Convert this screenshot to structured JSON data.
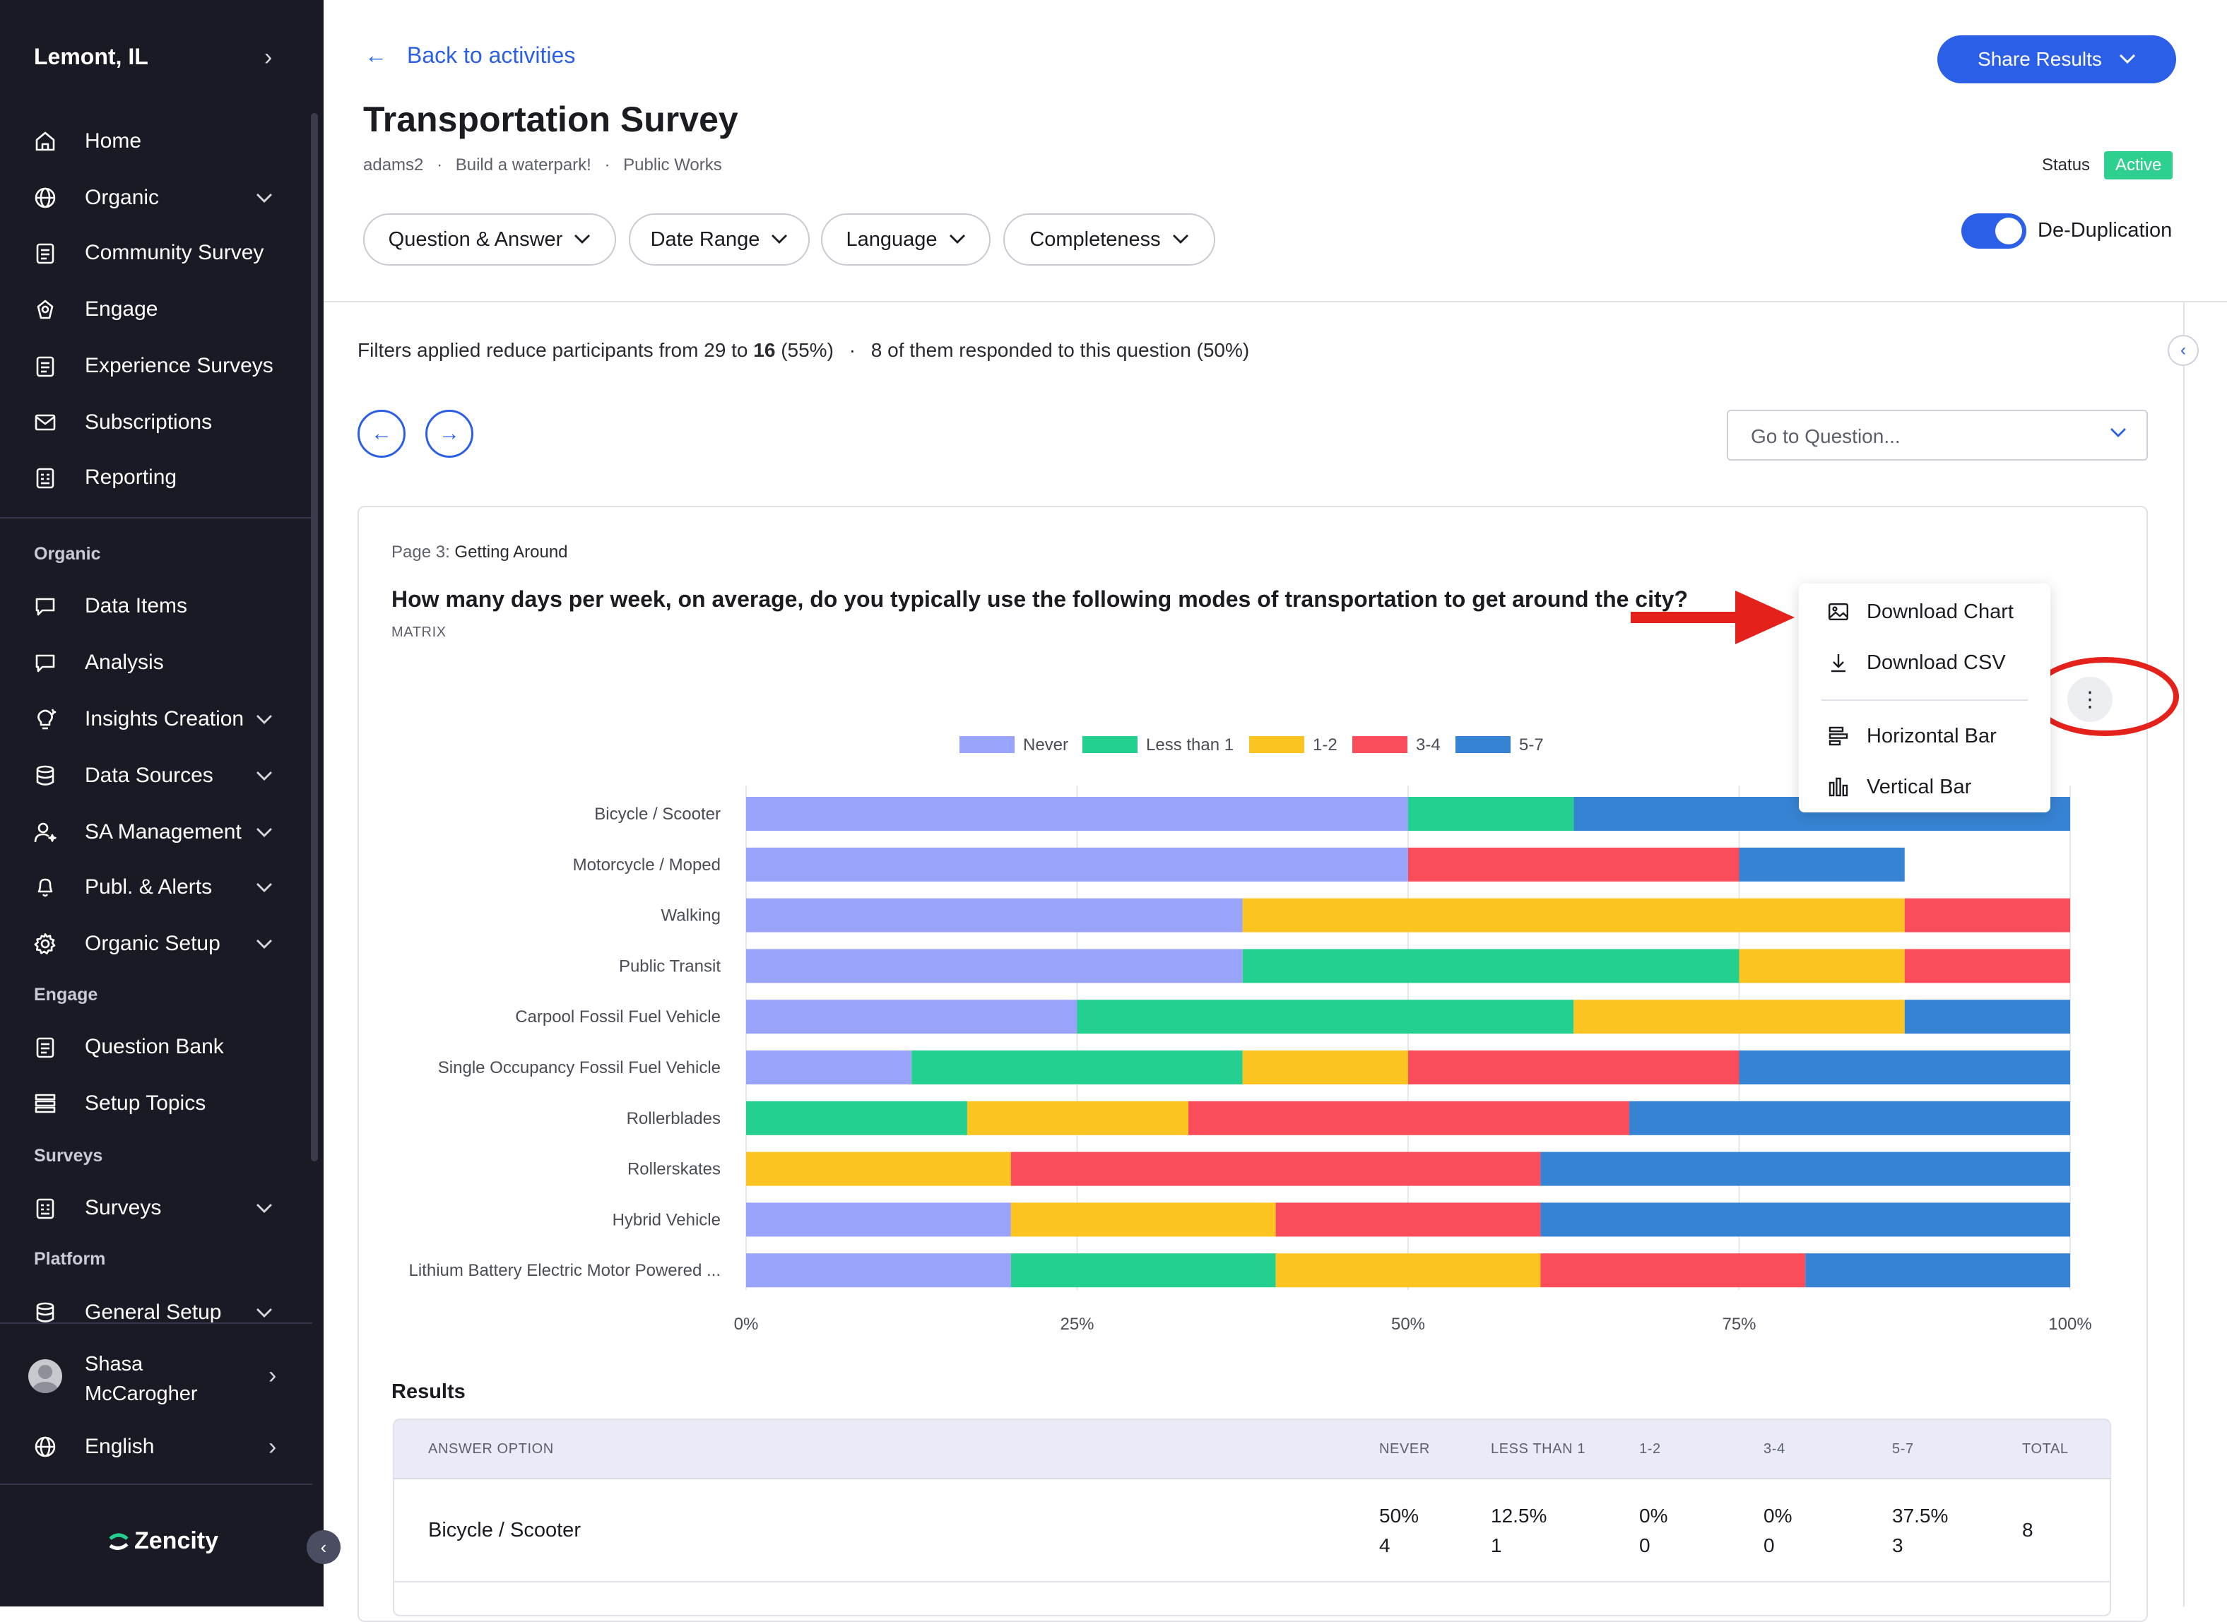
{
  "sidebar": {
    "city": "Lemont, IL",
    "items_top": [
      {
        "label": "Home",
        "icon": "home-icon",
        "chevron": false
      },
      {
        "label": "Organic",
        "icon": "globe-icon",
        "chevron": true
      },
      {
        "label": "Community Survey",
        "icon": "clipboard-icon",
        "chevron": false
      },
      {
        "label": "Engage",
        "icon": "engage-icon",
        "chevron": false
      },
      {
        "label": "Experience Surveys",
        "icon": "clipboard-icon",
        "chevron": false
      },
      {
        "label": "Subscriptions",
        "icon": "mail-icon",
        "chevron": false
      },
      {
        "label": "Reporting",
        "icon": "report-icon",
        "chevron": false
      }
    ],
    "section_organic": "Organic",
    "items_organic": [
      {
        "label": "Data Items",
        "icon": "chat-icon",
        "chevron": false
      },
      {
        "label": "Analysis",
        "icon": "chat-icon",
        "chevron": false
      },
      {
        "label": "Insights Creation",
        "icon": "bulb-icon",
        "chevron": true
      },
      {
        "label": "Data Sources",
        "icon": "database-icon",
        "chevron": true
      },
      {
        "label": "SA Management",
        "icon": "user-star-icon",
        "chevron": true
      },
      {
        "label": "Publ. & Alerts",
        "icon": "bell-icon",
        "chevron": true
      },
      {
        "label": "Organic Setup",
        "icon": "gear-icon",
        "chevron": true
      }
    ],
    "section_engage": "Engage",
    "items_engage": [
      {
        "label": "Question Bank",
        "icon": "clipboard-icon",
        "chevron": false
      },
      {
        "label": "Setup Topics",
        "icon": "list-icon",
        "chevron": false
      }
    ],
    "section_surveys": "Surveys",
    "items_surveys": [
      {
        "label": "Surveys",
        "icon": "report-icon",
        "chevron": true
      }
    ],
    "section_platform": "Platform",
    "items_platform": [
      {
        "label": "General Setup",
        "icon": "database-icon",
        "chevron": true
      }
    ],
    "user_name_line1": "Shasa",
    "user_name_line2": "McCarogher",
    "language": "English",
    "brand": "Zencity"
  },
  "header": {
    "back_label": "Back to activities",
    "title": "Transportation Survey",
    "crumbs": [
      "adams2",
      "Build a waterpark!",
      "Public Works"
    ],
    "share_label": "Share Results",
    "status_label": "Status",
    "status_value": "Active",
    "filters": [
      "Question & Answer",
      "Date Range",
      "Language",
      "Completeness"
    ],
    "dedup_label": "De-Duplication",
    "dedup_on": true
  },
  "filter_note": {
    "prefix": "Filters applied reduce participants from 29 to ",
    "bold": "16",
    "suffix": " (55%)",
    "second": "8 of them responded to this question (50%)"
  },
  "goto_placeholder": "Go to Question...",
  "card": {
    "page_prefix": "Page 3:",
    "page_name": "Getting Around",
    "question": "How many days per week, on average, do you typically use the following modes of transportation to get around the city?",
    "type": "MATRIX"
  },
  "menu": {
    "items": [
      {
        "label": "Download Chart",
        "icon": "image-icon"
      },
      {
        "label": "Download CSV",
        "icon": "download-icon"
      },
      {
        "label": "Horizontal Bar",
        "icon": "horizontal-bar-icon"
      },
      {
        "label": "Vertical Bar",
        "icon": "vertical-bar-icon"
      }
    ]
  },
  "colors": {
    "Never": "#99a3f9",
    "Less than 1": "#24d08f",
    "1-2": "#fbc420",
    "3-4": "#fb4c5b",
    "5-7": "#3783d3",
    "accent": "#2c5fe8",
    "annotation": "#e5211c"
  },
  "chart_data": {
    "type": "bar",
    "orientation": "horizontal",
    "stacked": true,
    "percent": true,
    "categories": [
      "Bicycle / Scooter",
      "Motorcycle / Moped",
      "Walking",
      "Public Transit",
      "Carpool Fossil Fuel Vehicle",
      "Single Occupancy Fossil Fuel Vehicle",
      "Rollerblades",
      "Rollerskates",
      "Hybrid Vehicle",
      "Lithium Battery Electric Motor Powered ..."
    ],
    "series": [
      {
        "name": "Never",
        "values": [
          50,
          50,
          37.5,
          37.5,
          25,
          12.5,
          0,
          0,
          20,
          20
        ]
      },
      {
        "name": "Less than 1",
        "values": [
          12.5,
          0,
          0,
          37.5,
          37.5,
          25,
          16.7,
          0,
          0,
          20
        ]
      },
      {
        "name": "1-2",
        "values": [
          0,
          0,
          50,
          12.5,
          25,
          12.5,
          16.7,
          20,
          20,
          20
        ]
      },
      {
        "name": "3-4",
        "values": [
          0,
          25,
          12.5,
          12.5,
          0,
          25,
          33.3,
          40,
          20,
          20
        ]
      },
      {
        "name": "5-7",
        "values": [
          37.5,
          12.5,
          0,
          0,
          12.5,
          25,
          33.3,
          40,
          40,
          20
        ]
      }
    ],
    "xticks": [
      "0%",
      "25%",
      "50%",
      "75%",
      "100%"
    ],
    "xlim": [
      0,
      100
    ],
    "legend_position": "top-center",
    "grid": true
  },
  "results": {
    "title": "Results",
    "headers": [
      "ANSWER OPTION",
      "NEVER",
      "LESS THAN 1",
      "1-2",
      "3-4",
      "5-7",
      "TOTAL"
    ],
    "rows": [
      {
        "option": "Bicycle / Scooter",
        "cells": [
          {
            "pct": "50%",
            "count": "4"
          },
          {
            "pct": "12.5%",
            "count": "1"
          },
          {
            "pct": "0%",
            "count": "0"
          },
          {
            "pct": "0%",
            "count": "0"
          },
          {
            "pct": "37.5%",
            "count": "3"
          }
        ],
        "total": "8"
      }
    ]
  }
}
